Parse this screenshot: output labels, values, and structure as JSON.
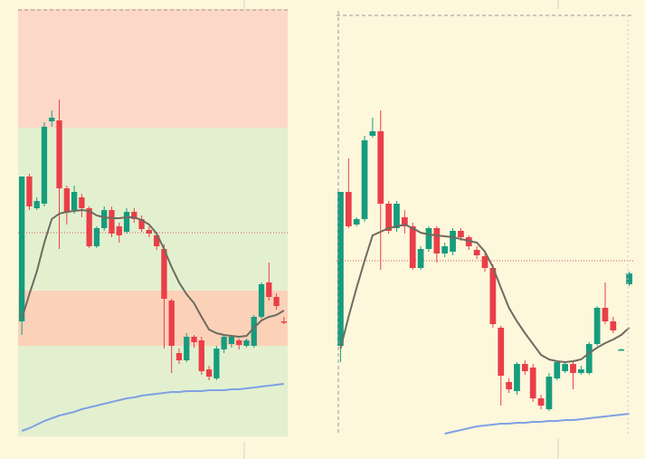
{
  "chart_data": [
    {
      "type": "candlestick",
      "ylim": [
        18,
        490
      ],
      "up_color": "#169c7e",
      "down_color": "#ea3e48",
      "ref_line": 243,
      "ref_color": "#d9534f",
      "zones": [
        {
          "from": 18,
          "to": 359,
          "color": "#e3f0cf"
        },
        {
          "from": 359,
          "to": 490,
          "color": "#fdd8c8"
        },
        {
          "from": 118,
          "to": 179,
          "color": "#fbd2b8"
        }
      ],
      "open": [
        145,
        305,
        270,
        275,
        366,
        367,
        292,
        268,
        282,
        270,
        228,
        248,
        268,
        250,
        244,
        266,
        258,
        246,
        240,
        225,
        168,
        110,
        102,
        128,
        124,
        92,
        82,
        114,
        120,
        124,
        118,
        118,
        150,
        188,
        172,
        145
      ],
      "close": [
        305,
        272,
        278,
        360,
        370,
        292,
        265,
        288,
        270,
        228,
        248,
        268,
        242,
        240,
        266,
        258,
        247,
        242,
        228,
        170,
        118,
        102,
        128,
        122,
        90,
        84,
        115,
        128,
        128,
        119,
        124,
        150,
        186,
        172,
        162,
        144
      ],
      "high": [
        305,
        308,
        282,
        365,
        378,
        390,
        295,
        295,
        286,
        272,
        250,
        272,
        272,
        254,
        270,
        270,
        262,
        250,
        244,
        230,
        170,
        115,
        132,
        130,
        128,
        96,
        118,
        130,
        130,
        126,
        126,
        152,
        188,
        210,
        176,
        150
      ],
      "low": [
        130,
        268,
        268,
        272,
        360,
        225,
        252,
        264,
        260,
        226,
        226,
        245,
        238,
        232,
        242,
        254,
        244,
        238,
        224,
        115,
        88,
        98,
        100,
        116,
        86,
        80,
        80,
        110,
        116,
        114,
        116,
        116,
        148,
        168,
        158,
        142
      ],
      "lines": [
        {
          "color": "#6e6b60",
          "values": [
            148,
            175,
            200,
            232,
            258,
            264,
            266,
            267,
            268,
            267,
            262,
            260,
            259,
            259,
            260,
            260,
            257,
            252,
            242,
            225,
            205,
            188,
            175,
            165,
            150,
            136,
            132,
            130,
            129,
            128,
            129,
            138,
            146,
            150,
            152,
            157
          ]
        },
        {
          "color": "#7fa0e3",
          "values": [
            24,
            27,
            31,
            35,
            38,
            41,
            43,
            45,
            48,
            50,
            52,
            54,
            56,
            58,
            60,
            61,
            63,
            64,
            65,
            66,
            67,
            67,
            68,
            68,
            68,
            69,
            69,
            69,
            70,
            70,
            71,
            72,
            73,
            74,
            75,
            76
          ]
        }
      ]
    },
    {
      "type": "candlestick",
      "ylim": [
        20,
        485
      ],
      "up_color": "#169c7e",
      "down_color": "#ea3e48",
      "ref_line": 212,
      "ref_color": "#d9534f",
      "zones": [],
      "open": [
        118,
        288,
        252,
        258,
        350,
        355,
        275,
        248,
        260,
        250,
        204,
        225,
        248,
        220,
        222,
        245,
        238,
        224,
        217,
        204,
        138,
        78,
        68,
        98,
        94,
        60,
        48,
        82,
        90,
        98,
        88,
        88,
        120,
        160,
        145,
        114,
        186
      ],
      "close": [
        288,
        250,
        258,
        345,
        355,
        275,
        245,
        275,
        250,
        204,
        225,
        248,
        220,
        228,
        245,
        238,
        228,
        218,
        204,
        142,
        85,
        70,
        98,
        90,
        60,
        52,
        84,
        100,
        98,
        88,
        92,
        120,
        160,
        145,
        135,
        114,
        198
      ],
      "high": [
        288,
        325,
        260,
        350,
        370,
        378,
        278,
        278,
        268,
        254,
        228,
        250,
        250,
        232,
        248,
        248,
        240,
        228,
        220,
        208,
        140,
        82,
        100,
        102,
        98,
        64,
        88,
        102,
        100,
        100,
        96,
        122,
        162,
        188,
        150,
        115,
        200
      ],
      "low": [
        100,
        248,
        250,
        255,
        348,
        202,
        242,
        244,
        242,
        202,
        202,
        222,
        210,
        216,
        218,
        234,
        224,
        214,
        200,
        138,
        52,
        66,
        64,
        86,
        56,
        48,
        46,
        80,
        88,
        70,
        86,
        86,
        118,
        142,
        132,
        113,
        184
      ],
      "lines": [
        {
          "color": "#6e6b60",
          "values": [
            115,
            150,
            182,
            212,
            240,
            244,
            248,
            250,
            252,
            248,
            243,
            241,
            240,
            239,
            238,
            236,
            234,
            232,
            222,
            205,
            182,
            160,
            145,
            132,
            120,
            108,
            103,
            101,
            100,
            101,
            103,
            110,
            116,
            121,
            125,
            130,
            138
          ]
        },
        {
          "color": "#7fa0e3",
          "values": [
            null,
            null,
            null,
            null,
            null,
            null,
            null,
            null,
            null,
            null,
            null,
            null,
            null,
            21,
            23,
            25,
            27,
            29,
            30,
            31,
            32,
            32,
            33,
            33,
            34,
            34,
            35,
            35,
            36,
            36,
            37,
            38,
            39,
            40,
            41,
            42,
            43
          ]
        }
      ]
    }
  ]
}
